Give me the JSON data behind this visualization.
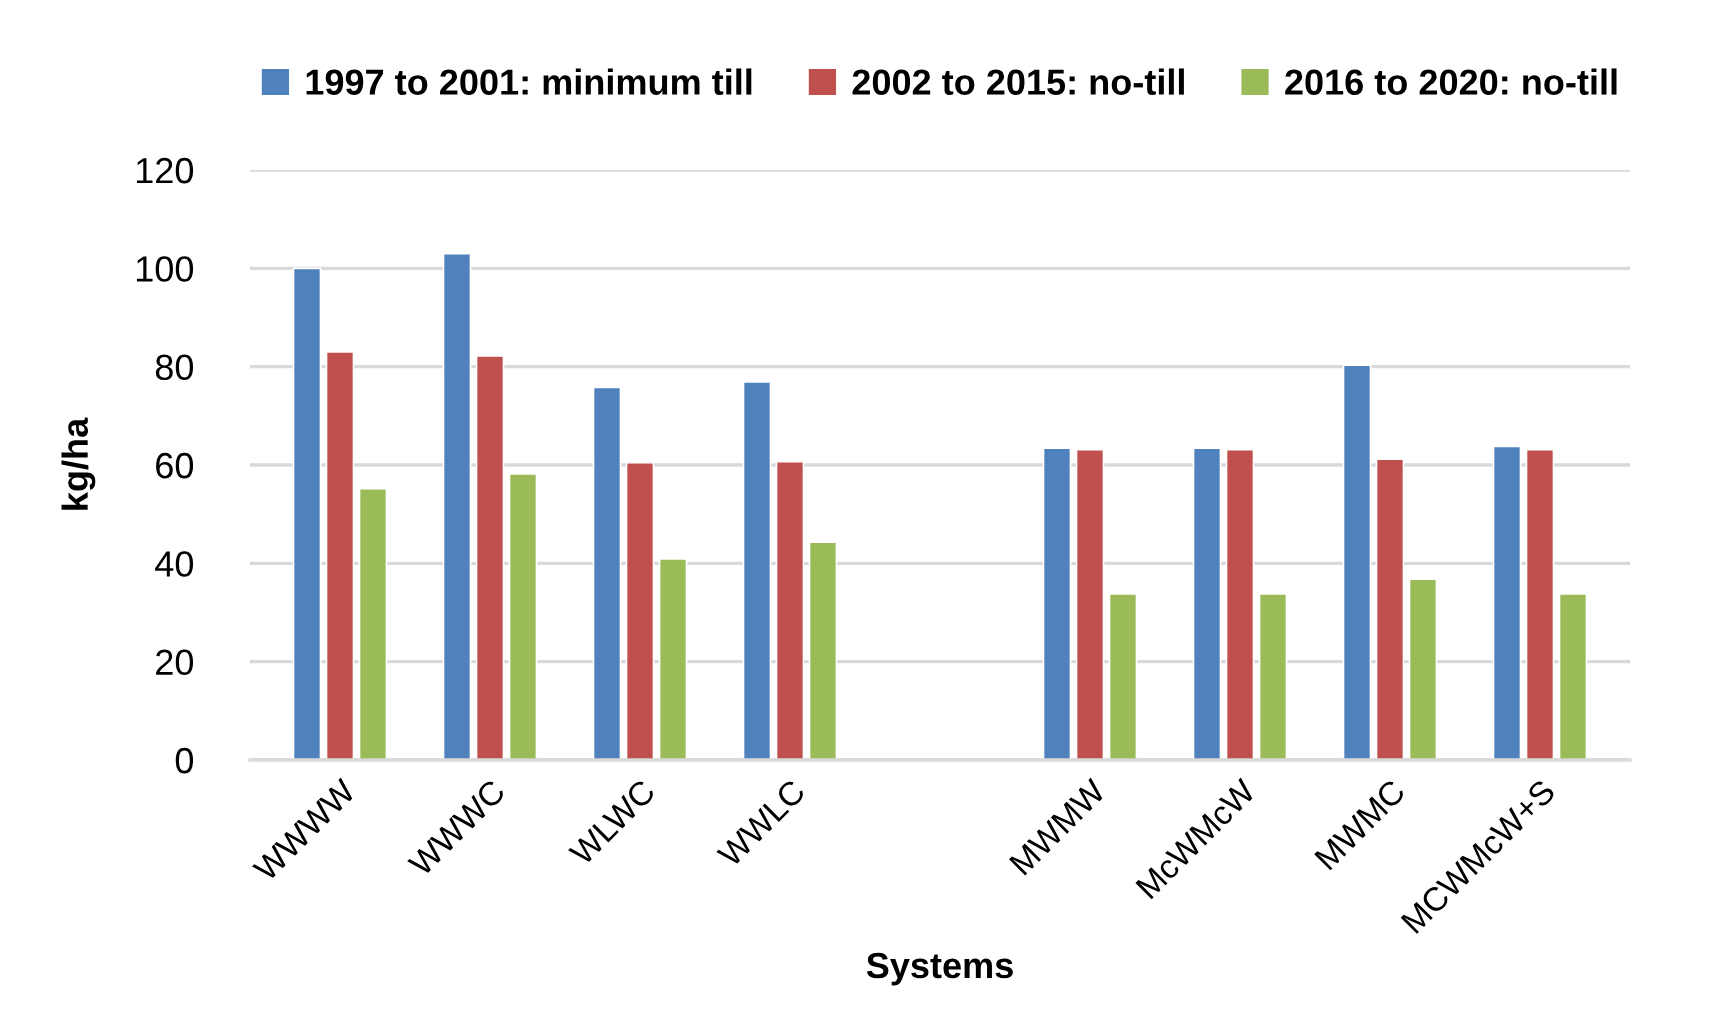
{
  "chart_data": {
    "type": "bar",
    "xlabel": "Systems",
    "ylabel": "kg/ha",
    "categories": [
      "WWWW",
      "WWWC",
      "WLWC",
      "WWLC",
      null,
      "MWMW",
      "McWMcW",
      "MWMC",
      "MCWMcW+S"
    ],
    "series": [
      {
        "name": "1997 to 2001: minimum till",
        "color": "#4f81bd",
        "values": [
          100,
          103,
          75.8,
          76.9,
          null,
          63.4,
          63.4,
          80.3,
          63.8
        ]
      },
      {
        "name": "2002 to 2015: no-till",
        "color": "#c0504d",
        "values": [
          83,
          82.2,
          60.5,
          60.7,
          null,
          63.1,
          63.1,
          61.2,
          63.1
        ]
      },
      {
        "name": "2016 to 2020: no-till",
        "color": "#9bbb59",
        "values": [
          55.2,
          58.2,
          40.9,
          44.3,
          null,
          33.8,
          33.8,
          36.8,
          33.8
        ]
      }
    ],
    "ylim": [
      0,
      120
    ],
    "yticks": [
      0,
      20,
      40,
      60,
      80,
      100,
      120
    ],
    "grid": "y",
    "legend": "top"
  }
}
